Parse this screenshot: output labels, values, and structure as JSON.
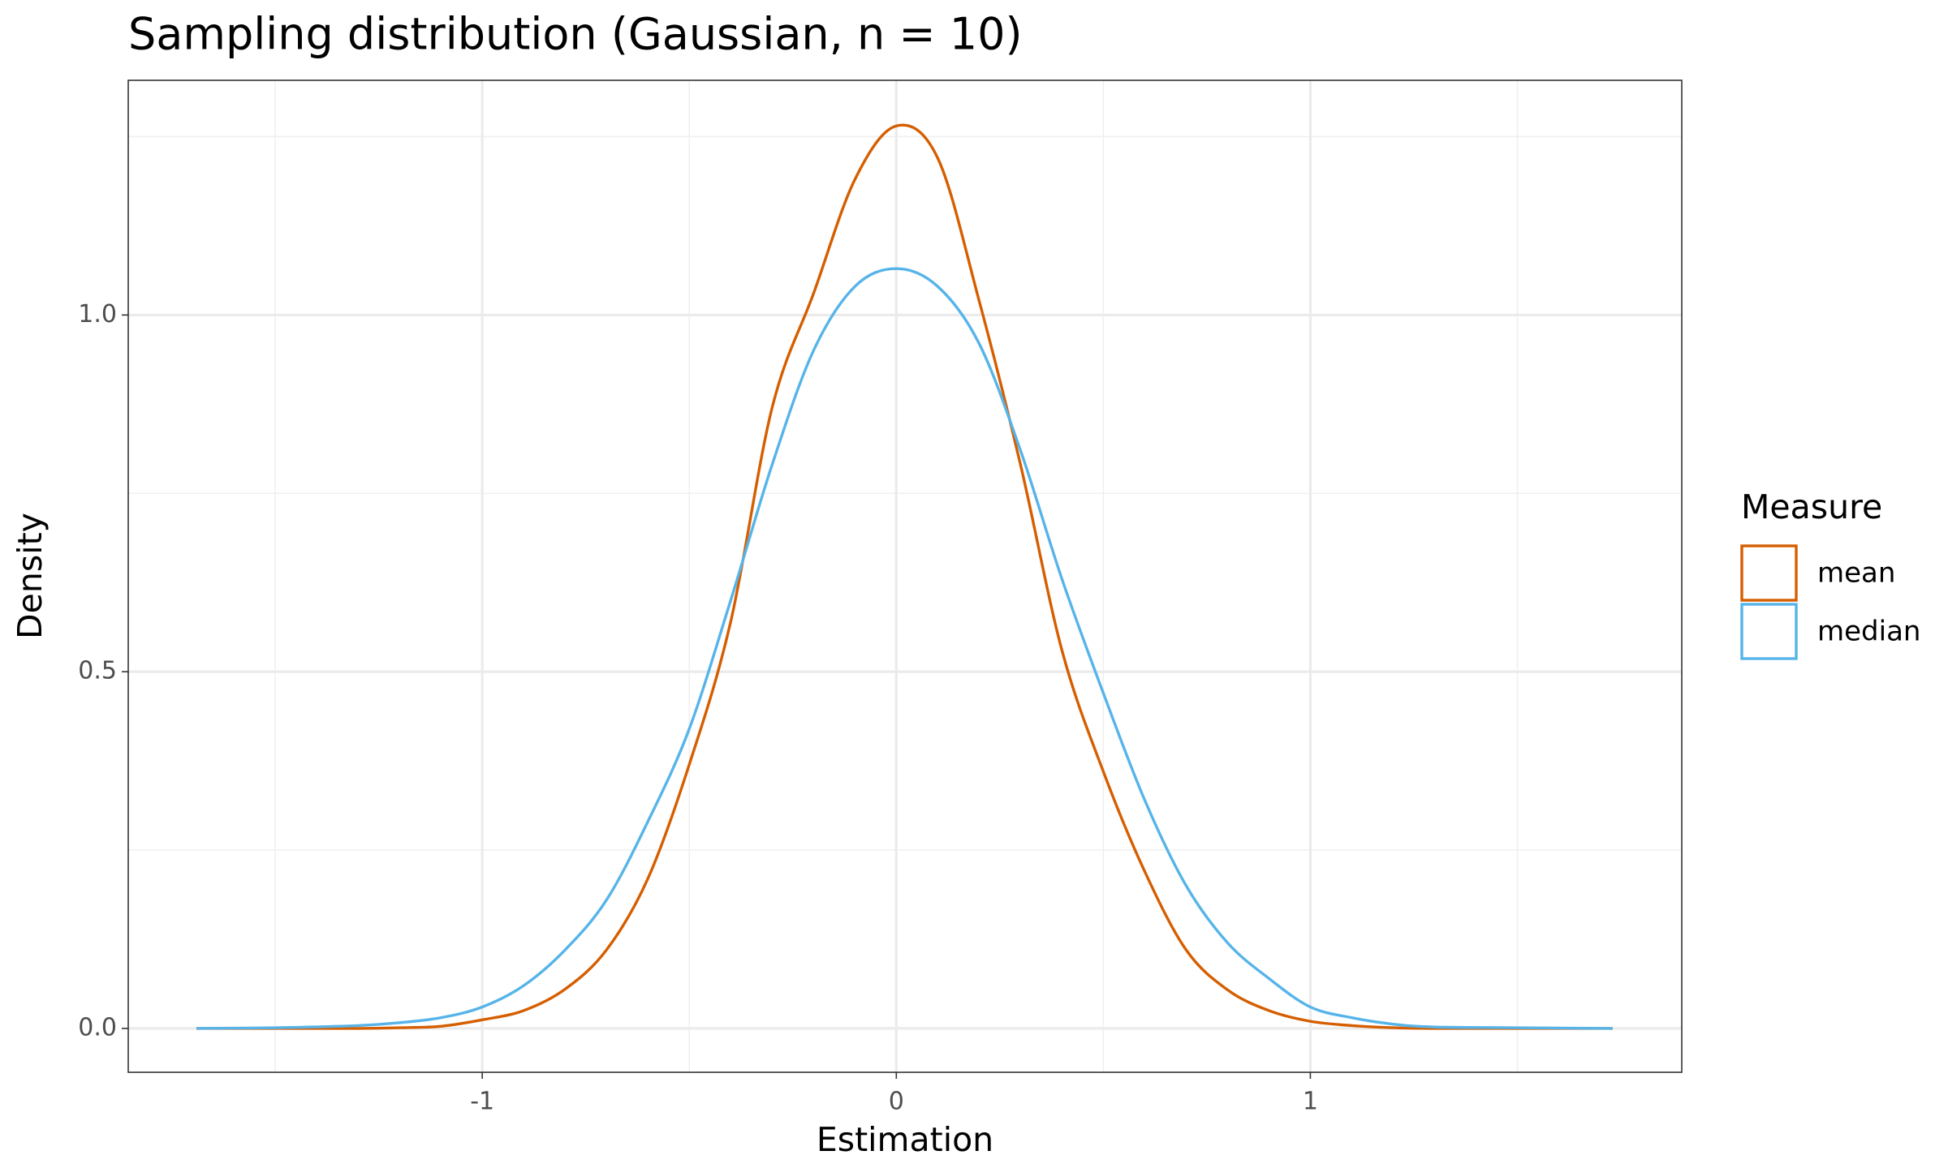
{
  "chart_data": {
    "type": "line",
    "title": "Sampling distribution (Gaussian, n = 10)",
    "x_label": "Estimation",
    "y_label": "Density",
    "legend_title": "Measure",
    "legend_position": "right",
    "x": [
      -1.69,
      -1.5,
      -1.3,
      -1.2,
      -1.1,
      -1,
      -0.9,
      -0.8,
      -0.7,
      -0.6,
      -0.5,
      -0.4,
      -0.3,
      -0.2,
      -0.1,
      0,
      0.1,
      0.2,
      0.3,
      0.4,
      0.5,
      0.6,
      0.7,
      0.8,
      0.9,
      1,
      1.1,
      1.2,
      1.3,
      1.5,
      1.73
    ],
    "series": [
      {
        "name": "mean",
        "color": "#d55e00",
        "values": [
          0,
          0,
          0,
          0.001,
          0.003,
          0.012,
          0.025,
          0.055,
          0.11,
          0.21,
          0.37,
          0.57,
          0.87,
          1.03,
          1.19,
          1.265,
          1.22,
          1.02,
          0.79,
          0.53,
          0.36,
          0.22,
          0.11,
          0.054,
          0.025,
          0.01,
          0.004,
          0.001,
          0,
          0,
          0
        ]
      },
      {
        "name": "median",
        "color": "#56b4e9",
        "values": [
          0,
          0.001,
          0.004,
          0.008,
          0.015,
          0.03,
          0.06,
          0.11,
          0.18,
          0.29,
          0.42,
          0.6,
          0.79,
          0.95,
          1.04,
          1.065,
          1.04,
          0.96,
          0.81,
          0.63,
          0.47,
          0.32,
          0.2,
          0.12,
          0.07,
          0.03,
          0.015,
          0.006,
          0.002,
          0.001,
          0
        ]
      }
    ],
    "xlim": [
      -1.855,
      1.897
    ],
    "ylim": [
      -0.0615,
      1.329
    ],
    "xticks": [
      -1,
      0,
      1
    ],
    "yticks": [
      {
        "value": 0,
        "label": "0.0"
      },
      {
        "value": 0.5,
        "label": "0.5"
      },
      {
        "value": 1,
        "label": "1.0"
      }
    ],
    "x_minor_grid": [
      -1.5,
      -0.5,
      0.5,
      1.5
    ],
    "y_minor_grid": [
      0.25,
      0.75,
      1.25
    ],
    "grid": true
  }
}
